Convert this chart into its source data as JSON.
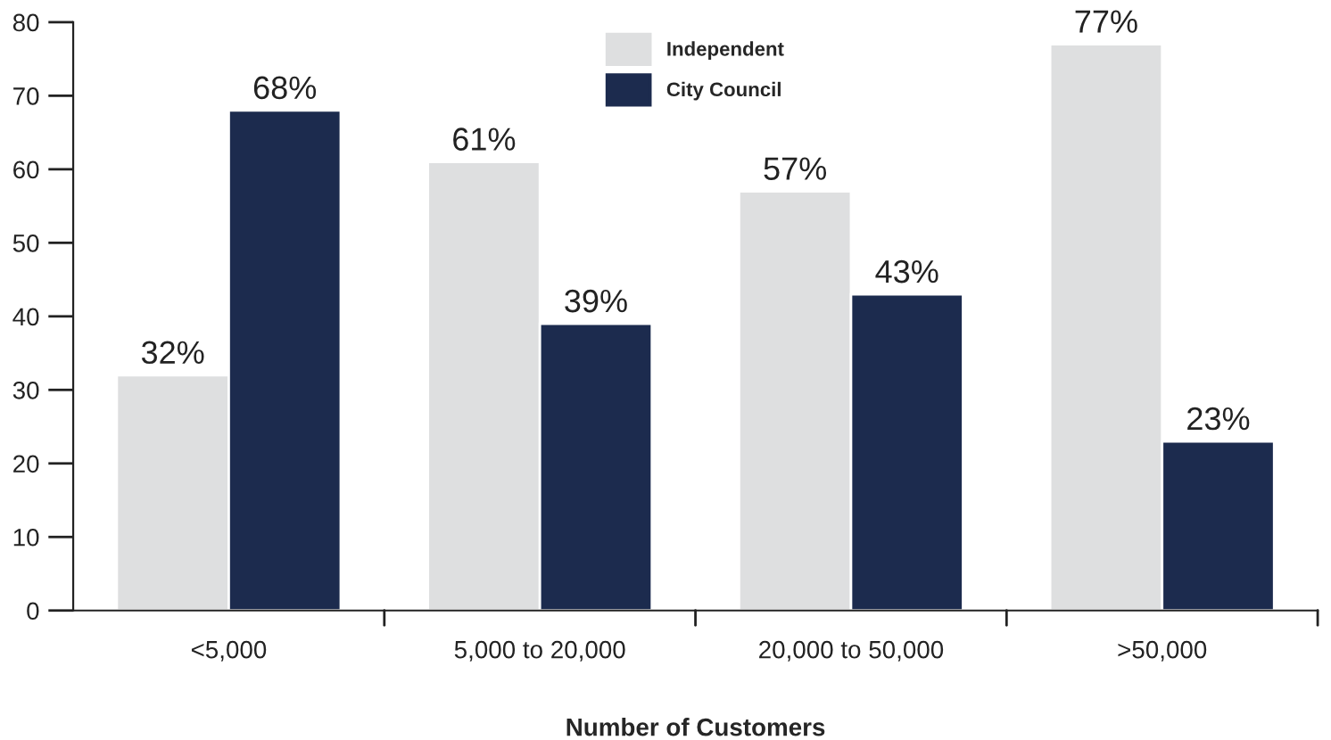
{
  "chart_data": {
    "type": "bar",
    "xlabel": "Number of Customers",
    "categories": [
      "<5,000",
      "5,000 to 20,000",
      "20,000 to 50,000",
      ">50,000"
    ],
    "series": [
      {
        "name": "Independent",
        "color": "#dedfe0",
        "values": [
          32,
          61,
          57,
          77
        ],
        "value_labels": [
          "32%",
          "61%",
          "57%",
          "77%"
        ]
      },
      {
        "name": "City Council",
        "color": "#1c2b4e",
        "values": [
          68,
          39,
          43,
          23
        ],
        "value_labels": [
          "68%",
          "39%",
          "43%",
          "23%"
        ]
      }
    ],
    "ylim": [
      0,
      80
    ],
    "yticks": [
      0,
      10,
      20,
      30,
      40,
      50,
      60,
      70,
      80
    ],
    "grid": false,
    "legend": "top"
  }
}
